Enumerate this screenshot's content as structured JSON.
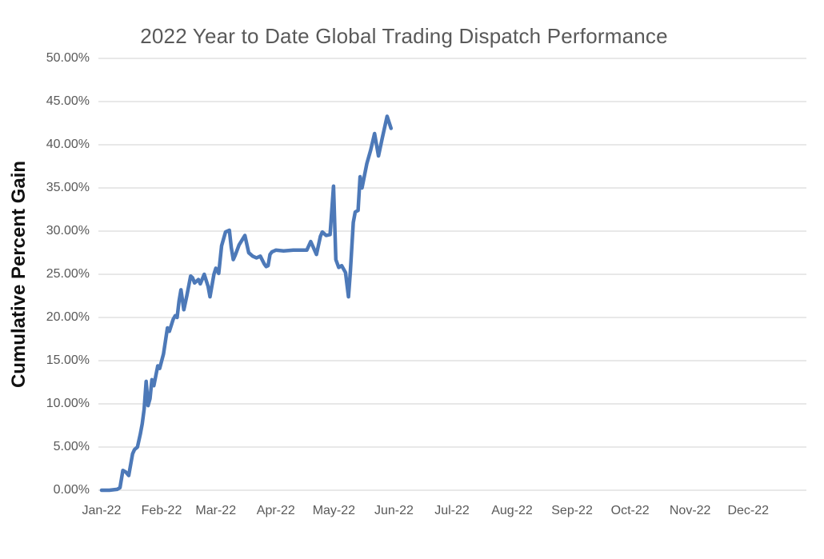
{
  "title": "2022 Year to Date Global Trading Dispatch Performance",
  "colors": {
    "line": "#4d79b8",
    "gridline": "#d9d9d9",
    "title_text": "#595959",
    "tick_text": "#595959",
    "axis_title_text": "#111111",
    "background": "#ffffff"
  },
  "chart_data": {
    "type": "line",
    "title": "2022 Year to Date Global Trading Dispatch Performance",
    "xlabel": "",
    "ylabel": "Cumulative Percent Gain",
    "ylim": [
      0,
      50
    ],
    "grid": true,
    "legend": false,
    "y_ticks": [
      {
        "value": 0,
        "label": "0.00%"
      },
      {
        "value": 5,
        "label": "5.00%"
      },
      {
        "value": 10,
        "label": "10.00%"
      },
      {
        "value": 15,
        "label": "15.00%"
      },
      {
        "value": 20,
        "label": "20.00%"
      },
      {
        "value": 25,
        "label": "25.00%"
      },
      {
        "value": 30,
        "label": "30.00%"
      },
      {
        "value": 35,
        "label": "35.00%"
      },
      {
        "value": 40,
        "label": "40.00%"
      },
      {
        "value": 45,
        "label": "45.00%"
      },
      {
        "value": 50,
        "label": "50.00%"
      }
    ],
    "x_ticks": [
      {
        "day": 0,
        "label": "Jan-22"
      },
      {
        "day": 31,
        "label": "Feb-22"
      },
      {
        "day": 59,
        "label": "Mar-22"
      },
      {
        "day": 90,
        "label": "Apr-22"
      },
      {
        "day": 120,
        "label": "May-22"
      },
      {
        "day": 151,
        "label": "Jun-22"
      },
      {
        "day": 181,
        "label": "Jul-22"
      },
      {
        "day": 212,
        "label": "Aug-22"
      },
      {
        "day": 243,
        "label": "Sep-22"
      },
      {
        "day": 273,
        "label": "Oct-22"
      },
      {
        "day": 304,
        "label": "Nov-22"
      },
      {
        "day": 334,
        "label": "Dec-22"
      }
    ],
    "series": [
      {
        "name": "Cumulative Percent Gain",
        "points_format": "[day_offset_from_jan1, percent_gain]",
        "points": [
          [
            0,
            0.0
          ],
          [
            4,
            0.0
          ],
          [
            8,
            0.1
          ],
          [
            9.5,
            0.3
          ],
          [
            11,
            2.3
          ],
          [
            12.5,
            2.1
          ],
          [
            14,
            1.7
          ],
          [
            16,
            4.2
          ],
          [
            17,
            4.7
          ],
          [
            18.5,
            5.0
          ],
          [
            20,
            6.5
          ],
          [
            21,
            7.7
          ],
          [
            22,
            9.4
          ],
          [
            23,
            12.6
          ],
          [
            24,
            9.8
          ],
          [
            25,
            10.6
          ],
          [
            26,
            12.8
          ],
          [
            27,
            12.1
          ],
          [
            29,
            14.4
          ],
          [
            30,
            14.1
          ],
          [
            32,
            15.8
          ],
          [
            34,
            18.8
          ],
          [
            35,
            18.4
          ],
          [
            37,
            19.8
          ],
          [
            38,
            20.2
          ],
          [
            39,
            20.0
          ],
          [
            40,
            21.9
          ],
          [
            41,
            23.2
          ],
          [
            42.5,
            20.9
          ],
          [
            44,
            22.5
          ],
          [
            46,
            24.8
          ],
          [
            47,
            24.6
          ],
          [
            48,
            24.0
          ],
          [
            50,
            24.4
          ],
          [
            51,
            23.9
          ],
          [
            53,
            25.0
          ],
          [
            55,
            23.6
          ],
          [
            56,
            22.4
          ],
          [
            58,
            25.0
          ],
          [
            59,
            25.7
          ],
          [
            60.5,
            25.1
          ],
          [
            62,
            28.3
          ],
          [
            64,
            29.9
          ],
          [
            66,
            30.1
          ],
          [
            67,
            28.1
          ],
          [
            68,
            26.7
          ],
          [
            69,
            27.2
          ],
          [
            71,
            28.4
          ],
          [
            74,
            29.5
          ],
          [
            76,
            27.5
          ],
          [
            78,
            27.1
          ],
          [
            80,
            26.9
          ],
          [
            82,
            27.1
          ],
          [
            84,
            26.2
          ],
          [
            85,
            25.9
          ],
          [
            86,
            26.0
          ],
          [
            87,
            27.3
          ],
          [
            88,
            27.6
          ],
          [
            90,
            27.8
          ],
          [
            94,
            27.7
          ],
          [
            99,
            27.8
          ],
          [
            103,
            27.8
          ],
          [
            106,
            27.8
          ],
          [
            108,
            28.8
          ],
          [
            111,
            27.3
          ],
          [
            113,
            29.4
          ],
          [
            114,
            29.9
          ],
          [
            116,
            29.5
          ],
          [
            118,
            29.6
          ],
          [
            119.8,
            35.2
          ],
          [
            121,
            26.7
          ],
          [
            122.5,
            25.8
          ],
          [
            124,
            26.0
          ],
          [
            126,
            25.2
          ],
          [
            127.5,
            22.4
          ],
          [
            128.5,
            25.4
          ],
          [
            130,
            31.0
          ],
          [
            131,
            32.2
          ],
          [
            132.5,
            32.4
          ],
          [
            133.5,
            36.3
          ],
          [
            134.5,
            35.0
          ],
          [
            137,
            37.8
          ],
          [
            139,
            39.4
          ],
          [
            141,
            41.3
          ],
          [
            143,
            38.7
          ],
          [
            145,
            40.8
          ],
          [
            147.5,
            43.3
          ],
          [
            149.5,
            41.9
          ]
        ]
      }
    ]
  }
}
